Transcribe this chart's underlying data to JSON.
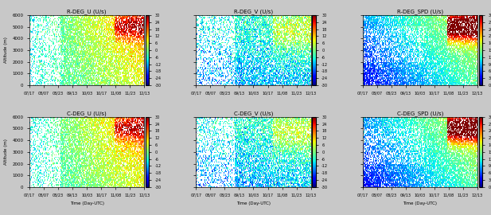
{
  "panels": [
    {
      "title": "R-DEG_U (U/s)",
      "row": 0,
      "col": 0,
      "cmap": "jet",
      "vmin": -30,
      "vmax": 30,
      "colorbar_ticks": [
        30,
        24,
        18,
        12,
        6,
        0,
        -6,
        -12,
        -18,
        -24,
        -30
      ]
    },
    {
      "title": "R-DEG_V (U/s)",
      "row": 0,
      "col": 1,
      "cmap": "jet",
      "vmin": -30,
      "vmax": 30,
      "colorbar_ticks": [
        30,
        24,
        18,
        12,
        6,
        0,
        -6,
        -12,
        -18,
        -24,
        -30
      ]
    },
    {
      "title": "R-DEG_SPD (U/s)",
      "row": 0,
      "col": 2,
      "cmap": "jet",
      "vmin": 0,
      "vmax": 30,
      "colorbar_ticks": [
        30,
        27,
        24,
        21,
        18,
        15,
        12,
        9,
        6,
        3,
        0
      ]
    },
    {
      "title": "C-DEG_U (U/s)",
      "row": 1,
      "col": 0,
      "cmap": "jet",
      "vmin": -30,
      "vmax": 30,
      "colorbar_ticks": [
        30,
        24,
        18,
        12,
        6,
        0,
        -6,
        -12,
        -18,
        -24,
        -30
      ]
    },
    {
      "title": "C-DEG_V (U/s)",
      "row": 1,
      "col": 1,
      "cmap": "jet",
      "vmin": -30,
      "vmax": 30,
      "colorbar_ticks": [
        30,
        24,
        18,
        12,
        6,
        0,
        -6,
        -12,
        -18,
        -24,
        -30
      ]
    },
    {
      "title": "C-DEG_SPD (U/s)",
      "row": 1,
      "col": 2,
      "cmap": "jet",
      "vmin": 0,
      "vmax": 30,
      "colorbar_ticks": [
        30,
        27,
        24,
        21,
        18,
        15,
        12,
        9,
        6,
        3,
        0
      ]
    }
  ],
  "xlabels": [
    "07/17",
    "08/07",
    "08/23",
    "09/13",
    "10/03",
    "10/17",
    "11/08",
    "11/23",
    "12/13"
  ],
  "ylabel": "Altitude (m)",
  "xlabel": "Time (Day-UTC)",
  "ylim": [
    0,
    6000
  ],
  "yticks": [
    0,
    1000,
    2000,
    3000,
    4000,
    5000,
    6000
  ],
  "background_color": "#f0f0f0",
  "fig_bg": "#d8d8d8",
  "ntime": 160,
  "nalt": 60,
  "seed": 42
}
